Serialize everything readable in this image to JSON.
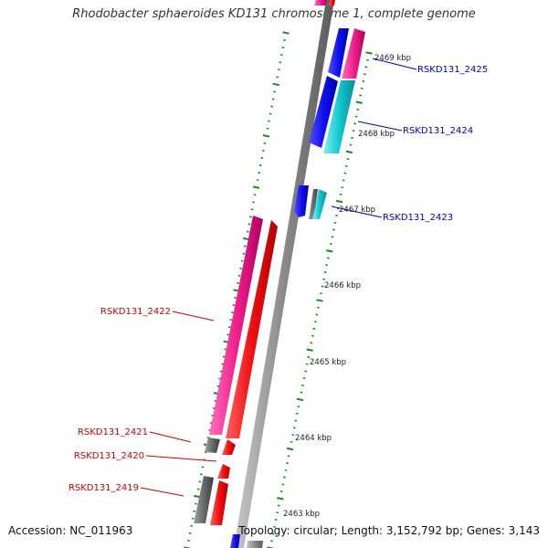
{
  "title": "Rhodobacter sphaeroides KD131 chromosome 1, complete genome",
  "accession": "Accession: NC_011963",
  "topology": "Topology: circular; Length: 3,152,792 bp; Genes: 3,143",
  "colors": {
    "forward_label": "#0000bb",
    "reverse_label": "#cc0000",
    "blue": "#1010f0",
    "cyan": "#10c8d0",
    "magenta": "#f0208c",
    "red": "#f01010",
    "gray": "#707070",
    "ticks": "#1a8a1a"
  },
  "kbp_labels": [
    "2469 kbp",
    "2468 kbp",
    "2467 kbp",
    "2466 kbp",
    "2465 kbp",
    "2464 kbp",
    "2463 kbp"
  ],
  "gene_labels": {
    "g2425": "RSKD131_2425",
    "g2424": "RSKD131_2424",
    "g2423": "RSKD131_2423",
    "g2422": "RSKD131_2422",
    "g2421": "RSKD131_2421",
    "g2420": "RSKD131_2420",
    "g2419": "RSKD131_2419"
  }
}
